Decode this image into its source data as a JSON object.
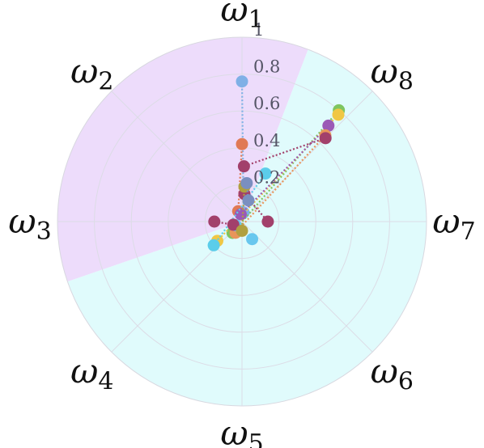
{
  "chart_data": {
    "type": "scatter",
    "projection": "polar",
    "title": "",
    "axes": [
      {
        "label": "ω",
        "sub": "1",
        "angle_deg": 90
      },
      {
        "label": "ω",
        "sub": "8",
        "angle_deg": 45
      },
      {
        "label": "ω",
        "sub": "7",
        "angle_deg": 0
      },
      {
        "label": "ω",
        "sub": "6",
        "angle_deg": -45
      },
      {
        "label": "ω",
        "sub": "5",
        "angle_deg": -90
      },
      {
        "label": "ω",
        "sub": "4",
        "angle_deg": -135
      },
      {
        "label": "ω",
        "sub": "3",
        "angle_deg": 180
      },
      {
        "label": "ω",
        "sub": "2",
        "angle_deg": 135
      }
    ],
    "radial_ticks": [
      "0.2",
      "0.4",
      "0.6",
      "0.8",
      "1"
    ],
    "radial_tick_values": [
      0.2,
      0.4,
      0.6,
      0.8,
      1.0
    ],
    "rlim": [
      0,
      1
    ],
    "grid": true,
    "sectors": [
      {
        "name": "upper-left region",
        "start_deg": 69,
        "end_deg": 199,
        "color": "#eddcfb"
      },
      {
        "name": "lower-right region",
        "start_deg": -161,
        "end_deg": 69,
        "color": "#e0fbfc"
      }
    ],
    "series": [
      {
        "color": "#7fb0e6",
        "points": [
          {
            "r": 0.76,
            "angle_deg": 90
          },
          {
            "r": 0.05,
            "angle_deg": 80
          }
        ]
      },
      {
        "color": "#e07a55",
        "points": [
          {
            "r": 0.42,
            "angle_deg": 90
          },
          {
            "r": 0.06,
            "angle_deg": 110
          }
        ]
      },
      {
        "color": "#7ec560",
        "points": [
          {
            "r": 0.8,
            "angle_deg": 49
          },
          {
            "r": 0.08,
            "angle_deg": 230
          }
        ]
      },
      {
        "color": "#f0c744",
        "points": [
          {
            "r": 0.78,
            "angle_deg": 48
          },
          {
            "r": 0.17,
            "angle_deg": 218
          }
        ]
      },
      {
        "color": "#9b59b6",
        "points": [
          {
            "r": 0.7,
            "angle_deg": 48
          },
          {
            "r": 0.04,
            "angle_deg": 100
          }
        ]
      },
      {
        "color": "#e8955a",
        "points": [
          {
            "r": 0.65,
            "angle_deg": 46
          },
          {
            "r": 0.07,
            "angle_deg": 240
          }
        ]
      },
      {
        "color": "#5bcdea",
        "points": [
          {
            "r": 0.29,
            "angle_deg": 64
          },
          {
            "r": 0.2,
            "angle_deg": 220
          }
        ]
      },
      {
        "color": "#68c7ee",
        "points": [
          {
            "r": 0.11,
            "angle_deg": 300
          },
          {
            "r": 0.04,
            "angle_deg": 210
          }
        ]
      },
      {
        "color": "#a2406b",
        "points": [
          {
            "r": 0.64,
            "angle_deg": 45
          },
          {
            "r": 0.3,
            "angle_deg": 88
          }
        ]
      },
      {
        "color": "#a2406b",
        "points": [
          {
            "r": 0.15,
            "angle_deg": 85
          },
          {
            "r": 0.14,
            "angle_deg": 0
          }
        ]
      },
      {
        "color": "#a2406b",
        "points": [
          {
            "r": 0.15,
            "angle_deg": 180
          },
          {
            "r": 0.05,
            "angle_deg": 200
          }
        ]
      },
      {
        "color": "#b0a040",
        "points": [
          {
            "r": 0.19,
            "angle_deg": 86
          },
          {
            "r": 0.05,
            "angle_deg": 270
          }
        ]
      },
      {
        "color": "#7a8fc0",
        "points": [
          {
            "r": 0.21,
            "angle_deg": 83
          },
          {
            "r": 0.12,
            "angle_deg": 73
          }
        ]
      }
    ]
  }
}
